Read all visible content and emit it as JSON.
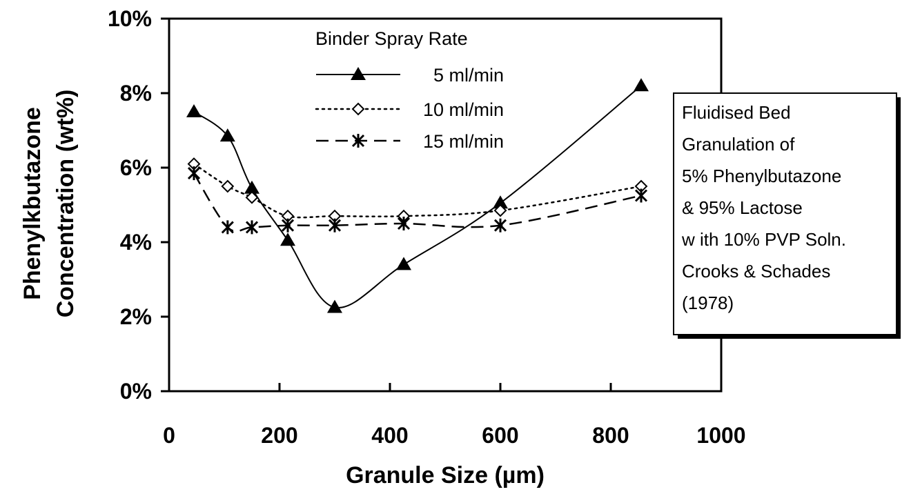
{
  "chart_data": {
    "type": "line",
    "title": "",
    "xlabel": "Granule Size (µm)",
    "ylabel_line1": "Phenylkbutazone",
    "ylabel_line2": "Concentration (wt%)",
    "xlim": [
      0,
      1000
    ],
    "ylim": [
      0,
      10
    ],
    "x_ticks": [
      "0",
      "200",
      "400",
      "600",
      "800",
      "1000"
    ],
    "y_ticks": [
      "0%",
      "2%",
      "4%",
      "6%",
      "8%",
      "10%"
    ],
    "grid": false,
    "legend_title": "Binder Spray Rate",
    "legend_position": "top-center",
    "series": [
      {
        "name": "5 ml/min",
        "line_style": "solid",
        "marker": "filled-triangle",
        "x": [
          45,
          106,
          150,
          215,
          300,
          425,
          600,
          855
        ],
        "y": [
          7.5,
          6.85,
          5.45,
          4.05,
          2.25,
          3.4,
          5.05,
          8.2
        ]
      },
      {
        "name": "10 ml/min",
        "line_style": "dotted",
        "marker": "open-diamond",
        "x": [
          45,
          106,
          150,
          215,
          300,
          425,
          600,
          855
        ],
        "y": [
          6.1,
          5.5,
          5.2,
          4.7,
          4.7,
          4.7,
          4.85,
          5.5
        ]
      },
      {
        "name": "15 ml/min",
        "line_style": "dashed",
        "marker": "asterisk",
        "x": [
          45,
          106,
          150,
          215,
          300,
          425,
          600,
          855
        ],
        "y": [
          5.85,
          4.4,
          4.4,
          4.45,
          4.45,
          4.5,
          4.45,
          5.25
        ]
      }
    ],
    "annotation": {
      "lines": [
        "Fluidised Bed",
        "Granulation of",
        "5% Phenylbutazone",
        "& 95% Lactose",
        "w ith 10% PVP Soln.",
        "Crooks & Schades",
        "(1978)"
      ],
      "position": "right"
    }
  }
}
